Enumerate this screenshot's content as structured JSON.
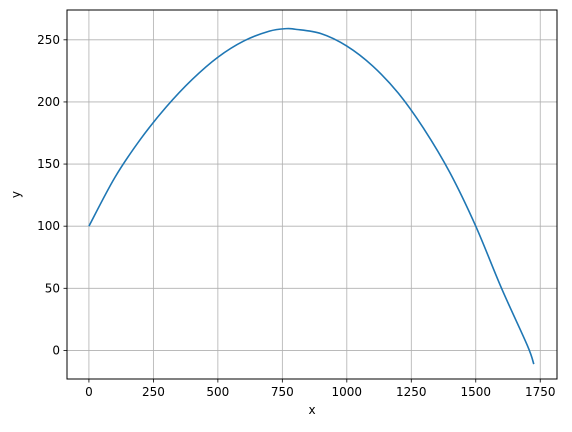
{
  "chart_data": {
    "type": "line",
    "title": "",
    "xlabel": "x",
    "ylabel": "y",
    "xlim": [
      -85,
      1815
    ],
    "ylim": [
      -23,
      274
    ],
    "xticks": [
      0,
      250,
      500,
      750,
      1000,
      1250,
      1500,
      1750
    ],
    "yticks": [
      0,
      50,
      100,
      150,
      200,
      250
    ],
    "grid": true,
    "series": [
      {
        "color": "#1f77b4",
        "x": [
          0,
          100,
          200,
          300,
          400,
          500,
          600,
          700,
          765,
          800,
          900,
          1000,
          1100,
          1200,
          1300,
          1400,
          1500,
          1600,
          1700,
          1725
        ],
        "y": [
          100,
          139,
          170,
          196,
          218,
          236,
          249,
          257,
          259,
          258.5,
          255,
          245,
          229,
          207,
          178,
          143,
          100,
          50,
          4,
          -11
        ]
      }
    ]
  }
}
